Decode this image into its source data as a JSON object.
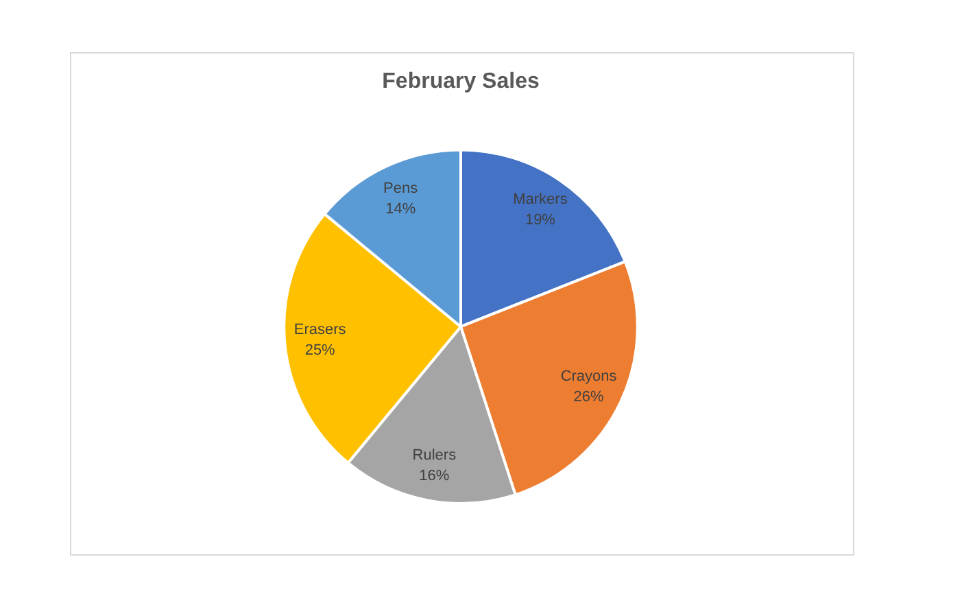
{
  "chart_data": {
    "type": "pie",
    "title": "February Sales",
    "categories": [
      "Markers",
      "Crayons",
      "Rulers",
      "Erasers",
      "Pens"
    ],
    "values": [
      19,
      26,
      16,
      25,
      14
    ],
    "value_labels": [
      "19%",
      "26%",
      "16%",
      "25%",
      "14%"
    ],
    "colors": [
      "#4472c4",
      "#ed7d31",
      "#a5a5a5",
      "#ffc000",
      "#5b9bd5"
    ],
    "legend": false
  }
}
